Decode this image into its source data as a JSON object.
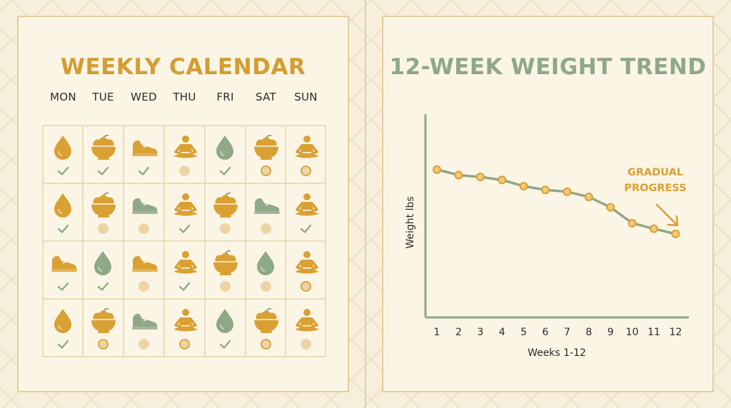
{
  "calendar": {
    "title": "WEEKLY CALENDAR",
    "days": [
      "MON",
      "TUE",
      "WED",
      "THU",
      "FRI",
      "SAT",
      "SUN"
    ],
    "weeks": [
      [
        {
          "icon": "water-drop",
          "color": "gold",
          "status": "check"
        },
        {
          "icon": "fruit-bowl",
          "color": "gold",
          "status": "check"
        },
        {
          "icon": "sneaker",
          "color": "gold",
          "status": "check"
        },
        {
          "icon": "meditation",
          "color": "gold",
          "status": "dot"
        },
        {
          "icon": "water-drop",
          "color": "green",
          "status": "check"
        },
        {
          "icon": "fruit-bowl",
          "color": "gold",
          "status": "circle"
        },
        {
          "icon": "meditation",
          "color": "gold",
          "status": "circle"
        }
      ],
      [
        {
          "icon": "water-drop",
          "color": "gold",
          "status": "check"
        },
        {
          "icon": "fruit-bowl",
          "color": "gold",
          "status": "dot"
        },
        {
          "icon": "sneaker",
          "color": "green",
          "status": "dot"
        },
        {
          "icon": "meditation",
          "color": "gold",
          "status": "check"
        },
        {
          "icon": "fruit-bowl",
          "color": "gold",
          "status": "dot"
        },
        {
          "icon": "sneaker",
          "color": "green",
          "status": "dot"
        },
        {
          "icon": "meditation",
          "color": "gold",
          "status": "check"
        }
      ],
      [
        {
          "icon": "sneaker",
          "color": "gold",
          "status": "check"
        },
        {
          "icon": "water-drop",
          "color": "green",
          "status": "check"
        },
        {
          "icon": "sneaker",
          "color": "gold",
          "status": "dot"
        },
        {
          "icon": "meditation",
          "color": "gold",
          "status": "check"
        },
        {
          "icon": "fruit-bowl",
          "color": "gold",
          "status": "dot"
        },
        {
          "icon": "water-drop",
          "color": "green",
          "status": "dot"
        },
        {
          "icon": "meditation",
          "color": "gold",
          "status": "circle"
        }
      ],
      [
        {
          "icon": "water-drop",
          "color": "gold",
          "status": "check"
        },
        {
          "icon": "fruit-bowl",
          "color": "gold",
          "status": "circle"
        },
        {
          "icon": "sneaker",
          "color": "green",
          "status": "dot"
        },
        {
          "icon": "meditation",
          "color": "gold",
          "status": "circle"
        },
        {
          "icon": "water-drop",
          "color": "green",
          "status": "check"
        },
        {
          "icon": "fruit-bowl",
          "color": "gold",
          "status": "circle"
        },
        {
          "icon": "meditation",
          "color": "gold",
          "status": "dot"
        }
      ]
    ]
  },
  "colors": {
    "gold": "#d9a033",
    "green": "#8fa886",
    "check": "#8fa886",
    "dot": "#edd4a6",
    "background": "#f7efdc"
  },
  "chart_data": {
    "type": "line",
    "title": "12-WEEK WEIGHT TREND",
    "xlabel": "Weeks 1-12",
    "ylabel": "Weight lbs",
    "x": [
      1,
      2,
      3,
      4,
      5,
      6,
      7,
      8,
      9,
      10,
      11,
      12
    ],
    "values": [
      100,
      98.5,
      98,
      97.2,
      95.5,
      94.5,
      94,
      92.6,
      89.8,
      85.5,
      84,
      82.6
    ],
    "ylim": [
      60,
      115
    ],
    "grid": false,
    "annotation": {
      "text_lines": [
        "GRADUAL",
        "PROGRESS"
      ],
      "color": "#d9a033"
    }
  }
}
